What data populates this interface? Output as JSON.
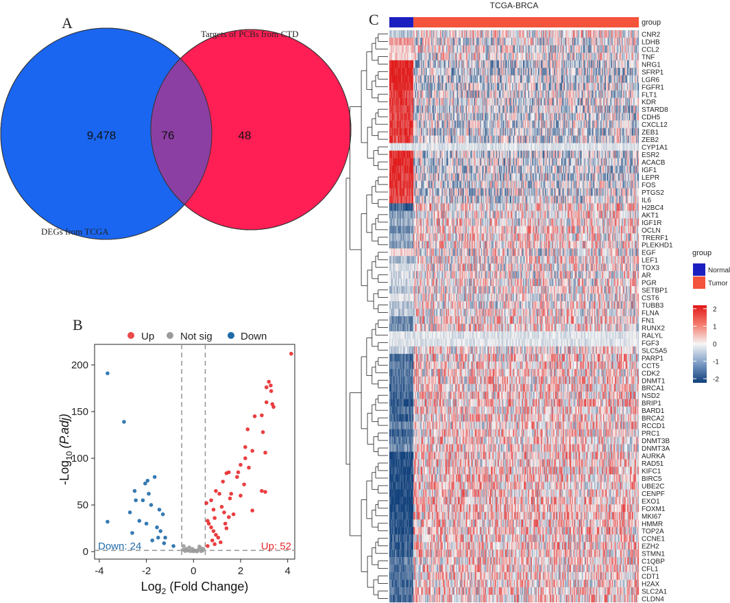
{
  "panel_labels": {
    "a": "A",
    "b": "B",
    "c": "C"
  },
  "colors": {
    "blue_set": "#1a66f0",
    "red_set": "#ff1f55",
    "overlap": "#8c3fa3",
    "up": "#e8292c",
    "down": "#1f6aa8",
    "notsig": "#9a9a9a",
    "normal": "#1b1fbf",
    "tumor": "#f4533c",
    "heat_high": "#e01818",
    "heat_mid": "#f5f5f5",
    "heat_low": "#0f3f7a"
  },
  "chart_data": [
    {
      "type": "venn",
      "sets": [
        {
          "name": "DEGs from TCGA",
          "only": "9,478"
        },
        {
          "name": "Targets of PCBs from CTD",
          "only": "48"
        }
      ],
      "overlap": "76"
    },
    {
      "type": "scatter",
      "subtype": "volcano",
      "legend": [
        "Up",
        "Not sig",
        "Down"
      ],
      "xlabel_main": "Log",
      "xlabel_sub": "2",
      "xlabel_tail": " (Fold Change)",
      "ylabel_main": "-Log",
      "ylabel_sub": "10",
      "ylabel_tail": "(P.adj)",
      "xlim": [
        -4.2,
        4.3
      ],
      "ylim": [
        -8,
        222
      ],
      "xticks": [
        -4,
        -2,
        0,
        2,
        4
      ],
      "yticks": [
        0,
        50,
        100,
        150,
        200
      ],
      "thresholds_x": [
        -0.5,
        0.5
      ],
      "threshold_y": 1.3,
      "down_label": "Down: 24",
      "up_label": "Up: 52",
      "series": [
        {
          "name": "Up",
          "points": [
            [
              4.15,
              212
            ],
            [
              3.2,
              182
            ],
            [
              3.28,
              178
            ],
            [
              3.1,
              176
            ],
            [
              3.3,
              172
            ],
            [
              3.35,
              158
            ],
            [
              3.4,
              155
            ],
            [
              3.1,
              160
            ],
            [
              2.95,
              128
            ],
            [
              3.05,
              106
            ],
            [
              2.9,
              146
            ],
            [
              2.6,
              145
            ],
            [
              2.3,
              131
            ],
            [
              2.2,
              112
            ],
            [
              2.5,
              108
            ],
            [
              2.2,
              100
            ],
            [
              2.35,
              90
            ],
            [
              2.0,
              93
            ],
            [
              1.9,
              85
            ],
            [
              1.85,
              80
            ],
            [
              1.5,
              85
            ],
            [
              1.4,
              84
            ],
            [
              1.25,
              75
            ],
            [
              1.6,
              62
            ],
            [
              2.0,
              60
            ],
            [
              2.15,
              72
            ],
            [
              1.55,
              57
            ],
            [
              1.1,
              62
            ],
            [
              0.95,
              65
            ],
            [
              0.75,
              55
            ],
            [
              0.55,
              52
            ],
            [
              0.85,
              45
            ],
            [
              0.9,
              36
            ],
            [
              1.2,
              48
            ],
            [
              1.3,
              42
            ],
            [
              1.5,
              37
            ],
            [
              1.7,
              40
            ],
            [
              0.6,
              33
            ],
            [
              0.65,
              30
            ],
            [
              0.75,
              26
            ],
            [
              0.85,
              22
            ],
            [
              0.95,
              18
            ],
            [
              1.05,
              15
            ],
            [
              0.8,
              12
            ],
            [
              1.15,
              10
            ],
            [
              0.9,
              8
            ],
            [
              0.6,
              6
            ],
            [
              1.4,
              25
            ],
            [
              2.9,
              65
            ],
            [
              3.05,
              64
            ],
            [
              2.5,
              44
            ],
            [
              1.35,
              30
            ]
          ]
        },
        {
          "name": "Not sig",
          "points": [
            [
              -0.42,
              6
            ],
            [
              -0.32,
              3
            ],
            [
              -0.22,
              1
            ],
            [
              -0.12,
              0.5
            ],
            [
              0.0,
              0.3
            ],
            [
              0.1,
              0.8
            ],
            [
              0.2,
              2
            ],
            [
              0.3,
              4
            ],
            [
              0.38,
              1
            ],
            [
              -0.05,
              3
            ],
            [
              0.02,
              1.5
            ],
            [
              0.15,
              0.2
            ],
            [
              -0.35,
              0.6
            ],
            [
              0.32,
              0.5
            ],
            [
              -0.18,
              4.5
            ],
            [
              0.25,
              5.5
            ],
            [
              -0.45,
              2
            ],
            [
              0.42,
              3
            ]
          ]
        },
        {
          "name": "Down",
          "points": [
            [
              -3.65,
              191
            ],
            [
              -2.95,
              139
            ],
            [
              -1.65,
              80
            ],
            [
              -1.95,
              76
            ],
            [
              -2.05,
              73
            ],
            [
              -2.5,
              65
            ],
            [
              -1.9,
              62
            ],
            [
              -2.15,
              55
            ],
            [
              -2.45,
              55
            ],
            [
              -1.8,
              50
            ],
            [
              -1.45,
              45
            ],
            [
              -1.3,
              40
            ],
            [
              -3.65,
              32
            ],
            [
              -2.7,
              42
            ],
            [
              -2.3,
              33
            ],
            [
              -2.0,
              30
            ],
            [
              -1.55,
              26
            ],
            [
              -1.4,
              22
            ],
            [
              -1.2,
              15
            ],
            [
              -1.5,
              15
            ],
            [
              -1.25,
              9
            ],
            [
              -1.75,
              12
            ],
            [
              -2.6,
              20
            ],
            [
              -0.85,
              6
            ]
          ]
        }
      ]
    },
    {
      "type": "heatmap",
      "title": "TCGA-BRCA",
      "annotation_label": "group",
      "legend_title": "group",
      "legend_items": [
        "Normal",
        "Tumor"
      ],
      "colorbar_ticks": [
        "2",
        "1",
        "0",
        "-1",
        "-2"
      ],
      "normal_fraction": 0.095,
      "rows": [
        "CNR2",
        "LDHB",
        "CCL2",
        "TNF",
        "NRG1",
        "SFRP1",
        "LGR6",
        "FGFR1",
        "FLT1",
        "KDR",
        "STARD8",
        "CDH5",
        "CXCL12",
        "ZEB1",
        "ZEB2",
        "CYP1A1",
        "ESR2",
        "ACACB",
        "IGF1",
        "LEPR",
        "FOS",
        "PTGS2",
        "IL6",
        "H2BC4",
        "AKT1",
        "IGF1R",
        "OCLN",
        "TRERF1",
        "PLEKHD1",
        "EGF",
        "LEF1",
        "TOX3",
        "AR",
        "PGR",
        "SETBP1",
        "CST6",
        "TUBB3",
        "FLNA",
        "FN1",
        "RUNX2",
        "RALYL",
        "FGF3",
        "SLC5A5",
        "PARP1",
        "CCT5",
        "CDK2",
        "DNMT1",
        "BRCA1",
        "NSD2",
        "BRIP1",
        "BARD1",
        "BRCA2",
        "RCCD1",
        "PRC1",
        "DNMT3B",
        "DNMT3A",
        "AURKA",
        "RAD51",
        "KIFC1",
        "BIRC5",
        "UBE2C",
        "CENPF",
        "EXO1",
        "FOXM1",
        "MKI67",
        "HMMR",
        "TOP2A",
        "CCNE1",
        "EZH2",
        "STMN1",
        "C1QBP",
        "CFL1",
        "CDT1",
        "H2AX",
        "SLC2A1",
        "CLDN4"
      ],
      "normal_level": [
        -0.6,
        0.8,
        0.4,
        0.3,
        2.0,
        2.0,
        2.0,
        1.8,
        1.7,
        1.7,
        1.6,
        1.6,
        1.7,
        1.7,
        1.6,
        0.1,
        1.8,
        1.9,
        1.9,
        1.8,
        1.7,
        1.6,
        1.5,
        -1.6,
        -1.0,
        -0.8,
        -1.2,
        -0.8,
        -0.9,
        0.3,
        -0.7,
        -0.2,
        -0.3,
        -0.4,
        -0.6,
        -0.2,
        -0.5,
        -0.6,
        -1.2,
        -1.2,
        0.0,
        0.0,
        -0.5,
        -1.6,
        -1.4,
        -1.4,
        -1.5,
        -1.5,
        -1.5,
        -1.7,
        -1.5,
        -1.6,
        -1.2,
        -1.6,
        -1.3,
        -1.2,
        -1.9,
        -1.9,
        -1.9,
        -1.9,
        -1.9,
        -1.9,
        -1.9,
        -1.9,
        -1.9,
        -1.9,
        -1.9,
        -1.6,
        -1.7,
        -1.6,
        -1.3,
        -1.4,
        -1.5,
        -1.5,
        -1.4,
        -1.6
      ]
    }
  ]
}
